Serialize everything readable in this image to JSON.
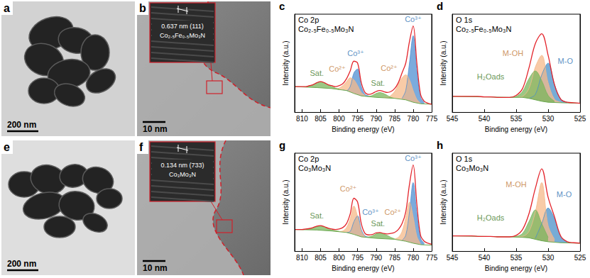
{
  "image_panels": [
    {
      "panel": "a",
      "scale_bar": "200 nm"
    },
    {
      "panel": "b",
      "scale_bar": "10 nm",
      "d_spacing": "0.637 nm (111)",
      "phase": "Co₂.₅Fe₀.₅Mo₃N"
    },
    {
      "panel": "e",
      "scale_bar": "200 nm"
    },
    {
      "panel": "f",
      "scale_bar": "10 nm",
      "d_spacing": "0.134 nm (733)",
      "phase": "Co₃Mo₃N"
    }
  ],
  "chart_data": [
    {
      "panel": "c",
      "type": "line",
      "title": "Co 2p",
      "subtitle": "Co₂.₅Fe₀.₅Mo₃N",
      "x_label": "Binding energy (eV)",
      "y_label": "Intensity (a.u.)",
      "xlim": [
        812,
        775
      ],
      "xticks": [
        810,
        805,
        800,
        795,
        790,
        785,
        780,
        775
      ],
      "ylim": [
        0,
        100
      ],
      "tick_labels": "x",
      "grid": false,
      "series": [
        {
          "type": "area",
          "color": "#4f8fd1",
          "x": [
            777,
            778,
            779,
            780,
            781,
            782,
            783
          ],
          "values": [
            10,
            15,
            42,
            78,
            50,
            22,
            14
          ]
        },
        {
          "type": "area",
          "color": "#f5b98a",
          "x": [
            778,
            779,
            780,
            781,
            782,
            783,
            784,
            785,
            786,
            787,
            788
          ],
          "values": [
            9,
            13,
            22,
            33,
            38,
            35,
            28,
            21,
            17,
            15,
            15
          ]
        },
        {
          "type": "area",
          "color": "#7ab55c",
          "x": [
            785,
            786,
            787,
            788,
            789,
            790,
            791,
            792,
            793
          ],
          "values": [
            14,
            15,
            17,
            19,
            20,
            19,
            17,
            16,
            16
          ]
        },
        {
          "type": "area",
          "color": "#4f8fd1",
          "x": [
            792,
            793,
            794,
            795,
            796,
            797,
            798,
            799
          ],
          "values": [
            16.5,
            18,
            26,
            44,
            40,
            26,
            22,
            22.5
          ]
        },
        {
          "type": "area",
          "color": "#f5b98a",
          "x": [
            793,
            794,
            795,
            796,
            797,
            798,
            799,
            800,
            801,
            802
          ],
          "values": [
            17,
            20,
            27,
            33,
            35,
            31,
            27,
            24.5,
            23.5,
            24
          ]
        },
        {
          "type": "area",
          "color": "#7ab55c",
          "x": [
            800,
            801,
            802,
            803,
            804,
            805,
            806,
            807,
            808,
            809,
            810
          ],
          "values": [
            23.5,
            24.5,
            26,
            28,
            30,
            31,
            30,
            28,
            26.5,
            25.5,
            25
          ]
        },
        {
          "type": "background",
          "color": "#6aa84f",
          "x": [
            775,
            778,
            780,
            782,
            785,
            790,
            794,
            796,
            798,
            802,
            806,
            812
          ],
          "values": [
            8,
            8.5,
            10,
            12.5,
            14,
            15,
            16.5,
            19,
            22,
            24,
            25,
            26
          ]
        },
        {
          "type": "line",
          "color": "#e3242b",
          "x": [
            775,
            776,
            777,
            778,
            779,
            780,
            781,
            782,
            783,
            784,
            785,
            786,
            787,
            788,
            789,
            790,
            791,
            792,
            793,
            794,
            795,
            796,
            797,
            798,
            799,
            800,
            801,
            802,
            803,
            804,
            805,
            806,
            807,
            808,
            809,
            810,
            811,
            812
          ],
          "values": [
            8,
            9,
            11,
            18,
            50,
            88,
            72,
            50,
            40,
            30,
            24,
            21,
            20,
            21,
            22,
            21,
            19,
            18,
            20,
            30,
            50,
            52,
            42,
            34,
            29,
            27,
            26,
            27,
            28,
            30,
            31,
            30,
            28,
            27,
            26,
            26,
            26,
            26
          ]
        }
      ],
      "annotations": [
        {
          "text": "Co³⁺",
          "x": 780,
          "y": 95,
          "color": "#2f74b5"
        },
        {
          "text": "Co²⁺",
          "x": 786.5,
          "y": 45,
          "color": "#c27a3a"
        },
        {
          "text": "Sat.",
          "x": 789.5,
          "y": 30,
          "color": "#3d7a26"
        },
        {
          "text": "Co³⁺",
          "x": 795.5,
          "y": 60,
          "color": "#2f74b5"
        },
        {
          "text": "Co²⁺",
          "x": 800.5,
          "y": 44,
          "color": "#c27a3a"
        },
        {
          "text": "Sat.",
          "x": 806,
          "y": 40,
          "color": "#3d7a26"
        }
      ]
    },
    {
      "panel": "d",
      "type": "line",
      "title": "O 1s",
      "subtitle": "Co₂.₅Fe₀.₅Mo₃N",
      "x_label": "Binding energy (eV)",
      "y_label": "Intensity (a.u.)",
      "xlim": [
        545,
        525
      ],
      "xticks": [
        545,
        540,
        535,
        530,
        525
      ],
      "ylim": [
        0,
        100
      ],
      "tick_labels": "x",
      "grid": false,
      "series": [
        {
          "type": "area",
          "color": "#4a90c8",
          "x": [
            527,
            528,
            529,
            530,
            531,
            532,
            533
          ],
          "values": [
            10,
            13,
            28,
            50,
            38,
            18,
            14
          ]
        },
        {
          "type": "area",
          "color": "#f5b98a",
          "x": [
            528,
            529,
            530,
            531,
            532,
            533,
            534,
            535
          ],
          "values": [
            10,
            13,
            30,
            58,
            46,
            24,
            16,
            15
          ]
        },
        {
          "type": "area",
          "color": "#7ab55c",
          "x": [
            529,
            530,
            531,
            532,
            533,
            534,
            535,
            536
          ],
          "values": [
            11,
            17,
            32,
            42,
            34,
            21,
            16,
            15
          ]
        },
        {
          "type": "background",
          "color": "#6aa84f",
          "x": [
            525,
            528,
            530,
            531,
            532,
            533,
            534,
            536,
            545
          ],
          "values": [
            9,
            9.5,
            10,
            11,
            12.5,
            14,
            15,
            15,
            16
          ]
        },
        {
          "type": "line",
          "color": "#e3242b",
          "x": [
            525,
            526,
            527,
            528,
            529,
            530,
            531,
            532,
            533,
            534,
            535,
            536,
            537,
            538,
            539,
            540,
            541,
            542,
            543,
            544,
            545
          ],
          "values": [
            9,
            9.5,
            10,
            13,
            28,
            58,
            80,
            70,
            45,
            24,
            17,
            15,
            15,
            15,
            15.5,
            15.5,
            16,
            16,
            16,
            16,
            16
          ]
        }
      ],
      "annotations": [
        {
          "text": "M-OH",
          "x": 535.5,
          "y": 60,
          "color": "#c27a3a"
        },
        {
          "text": "M-O",
          "x": 527.3,
          "y": 52,
          "color": "#2f74b5"
        },
        {
          "text": "H₂Oads",
          "x": 539,
          "y": 36,
          "color": "#3d7a26"
        }
      ]
    },
    {
      "panel": "g",
      "type": "line",
      "title": "Co 2p",
      "subtitle": "Co₃Mo₃N",
      "x_label": "Binding energy (eV)",
      "y_label": "Intensity (a.u.)",
      "xlim": [
        812,
        775
      ],
      "xticks": [
        810,
        805,
        800,
        795,
        790,
        785,
        780,
        775
      ],
      "ylim": [
        0,
        100
      ],
      "tick_labels": "x",
      "grid": false,
      "series": [
        {
          "type": "area",
          "color": "#4f8fd1",
          "x": [
            777,
            778,
            779,
            780,
            781,
            782,
            783
          ],
          "values": [
            8,
            13,
            38,
            70,
            40,
            16,
            11
          ]
        },
        {
          "type": "area",
          "color": "#f5b98a",
          "x": [
            778,
            779,
            780,
            781,
            782,
            783,
            784,
            785
          ],
          "values": [
            7.5,
            15,
            35,
            50,
            34,
            20,
            14,
            12.5
          ]
        },
        {
          "type": "area",
          "color": "#7ab55c",
          "x": [
            785,
            786,
            787,
            788,
            789,
            790,
            791,
            792,
            793
          ],
          "values": [
            12.5,
            14,
            16,
            17.5,
            18.5,
            17.5,
            15.5,
            14.5,
            14.5
          ]
        },
        {
          "type": "area",
          "color": "#4f8fd1",
          "x": [
            792,
            793,
            794,
            795,
            796,
            797,
            798
          ],
          "values": [
            14,
            15.5,
            22,
            36,
            30,
            20,
            19
          ]
        },
        {
          "type": "area",
          "color": "#f5b98a",
          "x": [
            793,
            794,
            795,
            796,
            797,
            798,
            799,
            800,
            801
          ],
          "values": [
            15,
            20,
            35,
            46,
            33,
            24,
            20.5,
            20,
            20.5
          ]
        },
        {
          "type": "area",
          "color": "#7ab55c",
          "x": [
            800,
            801,
            802,
            803,
            804,
            805,
            806,
            807,
            808,
            809,
            810
          ],
          "values": [
            20.2,
            20.8,
            21.5,
            23,
            24.5,
            25.5,
            25,
            23.5,
            22.5,
            22,
            21.8
          ]
        },
        {
          "type": "background",
          "color": "#6aa84f",
          "x": [
            775,
            778,
            780,
            782,
            785,
            790,
            794,
            796,
            798,
            802,
            806,
            812
          ],
          "values": [
            6,
            6.5,
            8,
            10,
            12,
            13,
            14.5,
            17,
            19,
            20.5,
            21.5,
            22
          ]
        },
        {
          "type": "line",
          "color": "#e3242b",
          "x": [
            775,
            776,
            777,
            778,
            779,
            780,
            781,
            782,
            783,
            784,
            785,
            786,
            787,
            788,
            789,
            790,
            791,
            792,
            793,
            794,
            795,
            796,
            797,
            798,
            799,
            800,
            801,
            802,
            803,
            804,
            805,
            806,
            807,
            808,
            809,
            810,
            811,
            812
          ],
          "values": [
            7,
            8,
            10,
            16,
            48,
            88,
            68,
            40,
            28,
            22,
            19,
            18,
            17.5,
            18,
            19,
            18.5,
            17,
            16.5,
            18,
            28,
            50,
            54,
            38,
            28,
            24,
            22.5,
            22,
            22.5,
            23.5,
            25,
            26,
            25.5,
            24,
            23,
            22.5,
            22,
            22,
            22
          ]
        }
      ],
      "annotations": [
        {
          "text": "Co³⁺",
          "x": 780,
          "y": 95,
          "color": "#2f74b5"
        },
        {
          "text": "Co²⁺",
          "x": 785.5,
          "y": 40,
          "color": "#c27a3a"
        },
        {
          "text": "Sat.",
          "x": 789.5,
          "y": 28,
          "color": "#3d7a26"
        },
        {
          "text": "Co³⁺",
          "x": 791.5,
          "y": 40,
          "color": "#2f74b5"
        },
        {
          "text": "Co²⁺",
          "x": 797.5,
          "y": 64,
          "color": "#c27a3a"
        },
        {
          "text": "Sat.",
          "x": 806,
          "y": 36,
          "color": "#3d7a26"
        }
      ]
    },
    {
      "panel": "h",
      "type": "line",
      "title": "O 1s",
      "subtitle": "Co₃Mo₃N",
      "x_label": "Binding energy (eV)",
      "y_label": "Intensity (a.u.)",
      "xlim": [
        545,
        525
      ],
      "xticks": [
        545,
        540,
        535,
        530,
        525
      ],
      "ylim": [
        0,
        100
      ],
      "tick_labels": "x",
      "grid": false,
      "series": [
        {
          "type": "area",
          "color": "#4a90c8",
          "x": [
            527,
            528,
            529,
            530,
            531,
            532
          ],
          "values": [
            9.5,
            14,
            33,
            44,
            28,
            13
          ]
        },
        {
          "type": "area",
          "color": "#f5b98a",
          "x": [
            529,
            530,
            531,
            532,
            533,
            534,
            535
          ],
          "values": [
            12,
            26,
            70,
            40,
            20,
            15,
            14.5
          ]
        },
        {
          "type": "area",
          "color": "#7ab55c",
          "x": [
            530,
            531,
            532,
            533,
            534,
            535,
            536
          ],
          "values": [
            14,
            28,
            42,
            30,
            18,
            15,
            14.5
          ]
        },
        {
          "type": "background",
          "color": "#6aa84f",
          "x": [
            525,
            528,
            530,
            531,
            532,
            533,
            534,
            536,
            545
          ],
          "values": [
            8,
            8.5,
            9.5,
            10.5,
            12,
            13.5,
            14,
            14.5,
            15.5
          ]
        },
        {
          "type": "line",
          "color": "#e3242b",
          "x": [
            525,
            526,
            527,
            528,
            529,
            530,
            531,
            532,
            533,
            534,
            535,
            536,
            537,
            538,
            539,
            540,
            541,
            542,
            543,
            544,
            545
          ],
          "values": [
            8,
            8.5,
            9.5,
            15,
            35,
            55,
            84,
            64,
            38,
            22,
            16,
            14.5,
            14.5,
            14.5,
            15,
            15,
            15,
            15.5,
            15.5,
            15.5,
            15.5
          ]
        }
      ],
      "annotations": [
        {
          "text": "M-OH",
          "x": 535,
          "y": 68,
          "color": "#c27a3a"
        },
        {
          "text": "M-O",
          "x": 527.5,
          "y": 58,
          "color": "#2f74b5"
        },
        {
          "text": "H₂Oads",
          "x": 539,
          "y": 34,
          "color": "#3d7a26"
        }
      ]
    }
  ]
}
